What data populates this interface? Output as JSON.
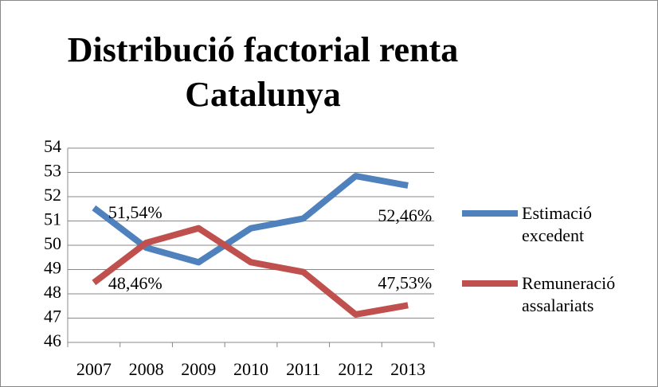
{
  "chart_data": {
    "type": "line",
    "title": "Distribució factorial renta Catalunya",
    "categories": [
      "2007",
      "2008",
      "2009",
      "2010",
      "2011",
      "2012",
      "2013"
    ],
    "series": [
      {
        "name": "Estimació excedent",
        "color": "#4f81bd",
        "values": [
          51.54,
          49.9,
          49.3,
          50.7,
          51.1,
          52.85,
          52.46
        ],
        "value_labels": [
          "51,54%",
          null,
          null,
          null,
          null,
          null,
          "52,46%"
        ]
      },
      {
        "name": "Remuneració assalariats",
        "color": "#c0504d",
        "values": [
          48.46,
          50.1,
          50.7,
          49.3,
          48.9,
          47.15,
          47.53
        ],
        "value_labels": [
          "48,46%",
          null,
          null,
          null,
          null,
          null,
          "47,53%"
        ]
      }
    ],
    "ylim": [
      46,
      54
    ],
    "yticks": [
      46,
      47,
      48,
      49,
      50,
      51,
      52,
      53,
      54
    ],
    "grid": true,
    "legend": "right"
  }
}
